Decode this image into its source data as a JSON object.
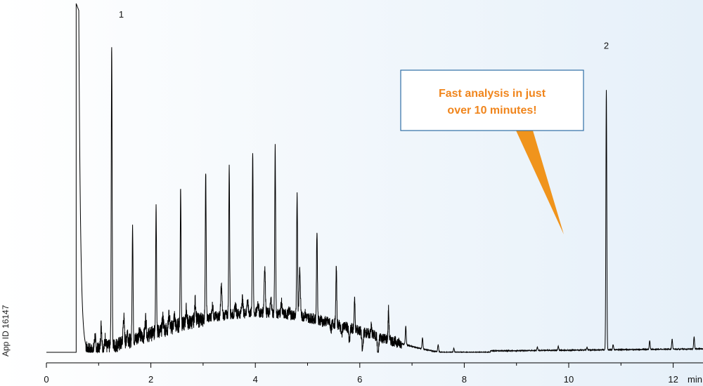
{
  "app_id_label": "App ID  16147",
  "colors": {
    "trace": "#000000",
    "callout_border": "#2f6ea5",
    "callout_text": "#f0851c",
    "callout_pointer": "#f0941c"
  },
  "callout": {
    "line1": "Fast analysis in just",
    "line2": "over 10 minutes!"
  },
  "chart_data": {
    "type": "line",
    "title": "",
    "xlabel": "",
    "ylabel": "",
    "x_unit": "min",
    "xlim": [
      0,
      12.6
    ],
    "ylim": [
      0,
      100
    ],
    "x_ticks": [
      0,
      2,
      4,
      6,
      8,
      10,
      12
    ],
    "x_tick_labels": [
      "0",
      "2",
      "4",
      "6",
      "8",
      "10",
      "12"
    ],
    "x_minor_ticks": [
      1,
      3,
      5,
      7,
      9,
      11
    ],
    "grid": false,
    "legend": "none",
    "baseline": 0,
    "solvent_front": {
      "start": 0.57,
      "tail_end": 1.1,
      "height": 100
    },
    "hump": {
      "center": 3.8,
      "width": 2.0,
      "height": 12.5,
      "start": 0.7,
      "end": 7.6
    },
    "peaks": [
      {
        "label": "1",
        "x": 1.25,
        "y": 100
      },
      {
        "label": "",
        "x": 1.65,
        "y": 45.5
      },
      {
        "label": "",
        "x": 2.1,
        "y": 48.5
      },
      {
        "label": "",
        "x": 2.57,
        "y": 50.8
      },
      {
        "label": "",
        "x": 3.05,
        "y": 53.2
      },
      {
        "label": "",
        "x": 3.5,
        "y": 54.6
      },
      {
        "label": "",
        "x": 3.95,
        "y": 58.5
      },
      {
        "label": "",
        "x": 4.38,
        "y": 59.0
      },
      {
        "label": "",
        "x": 4.8,
        "y": 47.2
      },
      {
        "label": "",
        "x": 5.18,
        "y": 37.3
      },
      {
        "label": "",
        "x": 5.55,
        "y": 27.7
      },
      {
        "label": "",
        "x": 5.9,
        "y": 20.3
      },
      {
        "label": "",
        "x": 6.22,
        "y": 13.5
      },
      {
        "label": "",
        "x": 6.55,
        "y": 8.7
      },
      {
        "label": "",
        "x": 6.88,
        "y": 5.4
      },
      {
        "label": "",
        "x": 7.2,
        "y": 3.3
      },
      {
        "label": "",
        "x": 7.5,
        "y": 2.1
      },
      {
        "label": "",
        "x": 7.8,
        "y": 1.2
      },
      {
        "label": "",
        "x": 9.4,
        "y": 1.0
      },
      {
        "label": "",
        "x": 9.8,
        "y": 1.2
      },
      {
        "label": "",
        "x": 10.35,
        "y": 0.8
      },
      {
        "label": "2",
        "x": 10.72,
        "y": 87.0
      },
      {
        "label": "",
        "x": 10.85,
        "y": 1.5
      },
      {
        "label": "",
        "x": 11.55,
        "y": 2.5
      },
      {
        "label": "",
        "x": 11.98,
        "y": 2.9
      },
      {
        "label": "",
        "x": 12.4,
        "y": 3.6
      }
    ],
    "minor_peaks": [
      {
        "x": 0.93,
        "y": 15.0
      },
      {
        "x": 1.05,
        "y": 18.0
      },
      {
        "x": 1.13,
        "y": 14.0
      },
      {
        "x": 1.48,
        "y": 18.5
      },
      {
        "x": 1.55,
        "y": 14.0
      },
      {
        "x": 1.78,
        "y": 13.5
      },
      {
        "x": 1.9,
        "y": 16.0
      },
      {
        "x": 2.23,
        "y": 14.5
      },
      {
        "x": 2.35,
        "y": 15.0
      },
      {
        "x": 2.45,
        "y": 14.0
      },
      {
        "x": 2.68,
        "y": 15.0
      },
      {
        "x": 2.85,
        "y": 16.8
      },
      {
        "x": 3.18,
        "y": 14.5
      },
      {
        "x": 3.35,
        "y": 19.7
      },
      {
        "x": 3.62,
        "y": 13.5
      },
      {
        "x": 3.75,
        "y": 15.5
      },
      {
        "x": 3.85,
        "y": 14.5
      },
      {
        "x": 4.05,
        "y": 14.0
      },
      {
        "x": 4.18,
        "y": 24.5
      },
      {
        "x": 4.3,
        "y": 15.0
      },
      {
        "x": 4.5,
        "y": 14.2
      },
      {
        "x": 4.65,
        "y": 12.5
      },
      {
        "x": 4.85,
        "y": 25.0
      },
      {
        "x": 4.95,
        "y": 12.0
      },
      {
        "x": 5.3,
        "y": 10.5
      },
      {
        "x": 5.45,
        "y": 9.2
      },
      {
        "x": 5.65,
        "y": 8.2
      },
      {
        "x": 5.8,
        "y": 6.8
      },
      {
        "x": 6.05,
        "y": 5.5
      },
      {
        "x": 6.35,
        "y": 4.5
      }
    ]
  }
}
